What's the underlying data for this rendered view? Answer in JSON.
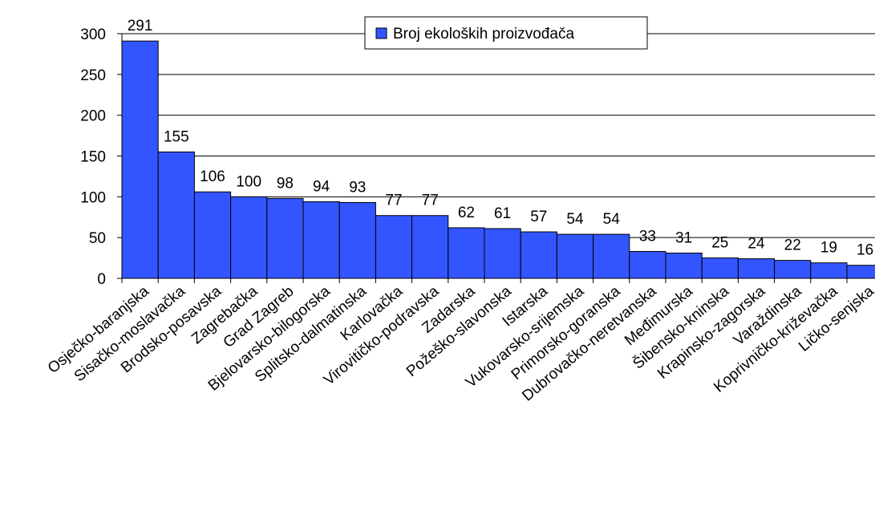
{
  "chart_data": {
    "type": "bar",
    "categories": [
      "Osječko-baranjska",
      "Sisačko-moslavačka",
      "Brodsko-posavska",
      "Zagrebačka",
      "Grad Zagreb",
      "Bjelovarsko-bilogorska",
      "Splitsko-dalmatinska",
      "Karlovačka",
      "Virovitičko-podravska",
      "Zadarska",
      "Požeško-slavonska",
      "Istarska",
      "Vukovarsko-srijemska",
      "Primorsko-goranska",
      "Dubrovačko-neretvanska",
      "Međimurska",
      "Šibensko-kninska",
      "Krapinsko-zagorska",
      "Varaždinska",
      "Koprivničko-križevačka",
      "Ličko-senjska"
    ],
    "series": [
      {
        "name": "Broj ekoloških proizvođača",
        "values": [
          291,
          155,
          106,
          100,
          98,
          94,
          93,
          77,
          77,
          62,
          61,
          57,
          54,
          54,
          33,
          31,
          25,
          24,
          22,
          19,
          16
        ],
        "color": "#3355ff"
      }
    ],
    "yticks": [
      0,
      50,
      100,
      150,
      200,
      250,
      300
    ],
    "ylim": [
      0,
      300
    ],
    "grid": true,
    "legend_position": "top-center"
  }
}
